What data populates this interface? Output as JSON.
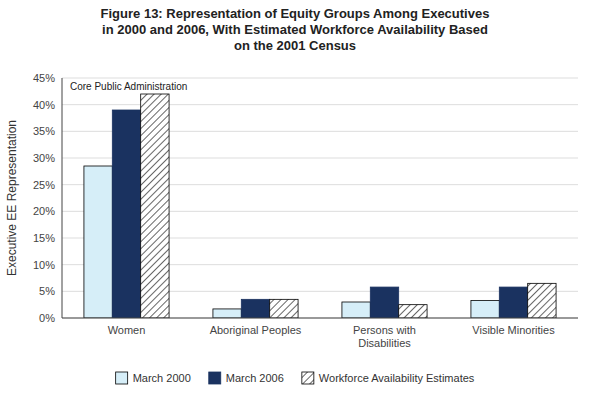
{
  "chart_data": {
    "type": "bar",
    "title": "Figure 13: Representation of Equity Groups Among Executives\nin 2000 and 2006, With Estimated Workforce Availability Based\non the 2001 Census",
    "categories": [
      "Women",
      "Aboriginal Peoples",
      "Persons with Disabilities",
      "Visible Minorities"
    ],
    "series": [
      {
        "name": "March 2000",
        "color": "#d6eef8",
        "values": [
          28.5,
          1.7,
          3.0,
          3.3
        ]
      },
      {
        "name": "March 2006",
        "color": "#1a3260",
        "values": [
          39.0,
          3.5,
          5.8,
          5.8
        ]
      },
      {
        "name": "Workforce Availability Estimates",
        "color": "#ffffff",
        "values": [
          42.0,
          3.5,
          2.5,
          6.5
        ]
      }
    ],
    "y_label": "Executive EE Representation",
    "annotation": "Core Public Administration",
    "ylim": [
      0,
      45
    ],
    "yticks": [
      {
        "value": 0,
        "label": "0%"
      },
      {
        "value": 5,
        "label": "5%"
      },
      {
        "value": 10,
        "label": "10%"
      },
      {
        "value": 15,
        "label": "15%"
      },
      {
        "value": 20,
        "label": "20%"
      },
      {
        "value": 25,
        "label": "25%"
      },
      {
        "value": 30,
        "label": "30%"
      },
      {
        "value": 35,
        "label": "35%"
      },
      {
        "value": 40,
        "label": "40%"
      },
      {
        "value": 45,
        "label": "45%"
      }
    ],
    "grid": true,
    "legend": "bottom"
  }
}
